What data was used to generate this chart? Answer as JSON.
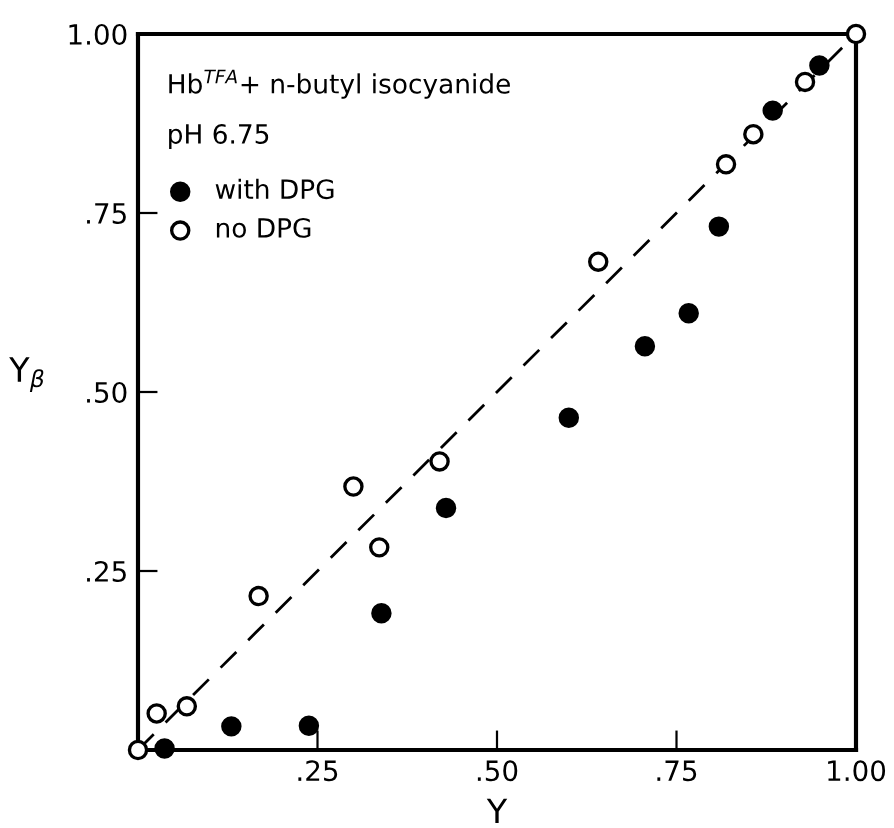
{
  "chart_data": {
    "type": "scatter",
    "xlabel": "Y",
    "ylabel": "Y$_{β}$",
    "annotations": [
      "Hb$^{TFA}$+ n-butyl isocyanide",
      "pH 6.75"
    ],
    "xlim": [
      0,
      1
    ],
    "ylim": [
      0,
      1
    ],
    "xticks": [
      {
        "value": 0,
        "label": null
      },
      {
        "value": 0.25,
        "label": ".25"
      },
      {
        "value": 0.5,
        "label": ".50"
      },
      {
        "value": 0.75,
        "label": ".75"
      },
      {
        "value": 1,
        "label": "1.00"
      }
    ],
    "yticks": [
      {
        "value": 0,
        "label": null
      },
      {
        "value": 0.25,
        "label": ".25"
      },
      {
        "value": 0.5,
        "label": ".50"
      },
      {
        "value": 0.75,
        "label": ".75"
      },
      {
        "value": 1,
        "label": "1.00"
      }
    ],
    "grid": false,
    "legend": "top left",
    "marker": "circle",
    "series": [
      {
        "name": "with DPG",
        "color": "#000000",
        "x": [
          0.037,
          0.13,
          0.238,
          0.339,
          0.429,
          0.6,
          0.706,
          0.767,
          0.809,
          0.884,
          0.949
        ],
        "values": [
          0.002,
          0.033,
          0.034,
          0.191,
          0.338,
          0.464,
          0.564,
          0.61,
          0.731,
          0.893,
          0.956
        ]
      },
      {
        "name": "no DPG",
        "color": "#ffffff",
        "x": [
          0,
          0.026,
          0.068,
          0.168,
          0.3,
          0.336,
          0.42,
          0.641,
          0.819,
          0.857,
          0.929,
          1
        ],
        "values": [
          0,
          0.051,
          0.061,
          0.215,
          0.368,
          0.283,
          0.403,
          0.682,
          0.818,
          0.86,
          0.933,
          1
        ]
      },
      {
        "type": "line",
        "color": "#000000",
        "line_style": "dashed",
        "marker": "none",
        "x": [
          0,
          1
        ],
        "values": [
          0,
          1
        ]
      }
    ]
  }
}
